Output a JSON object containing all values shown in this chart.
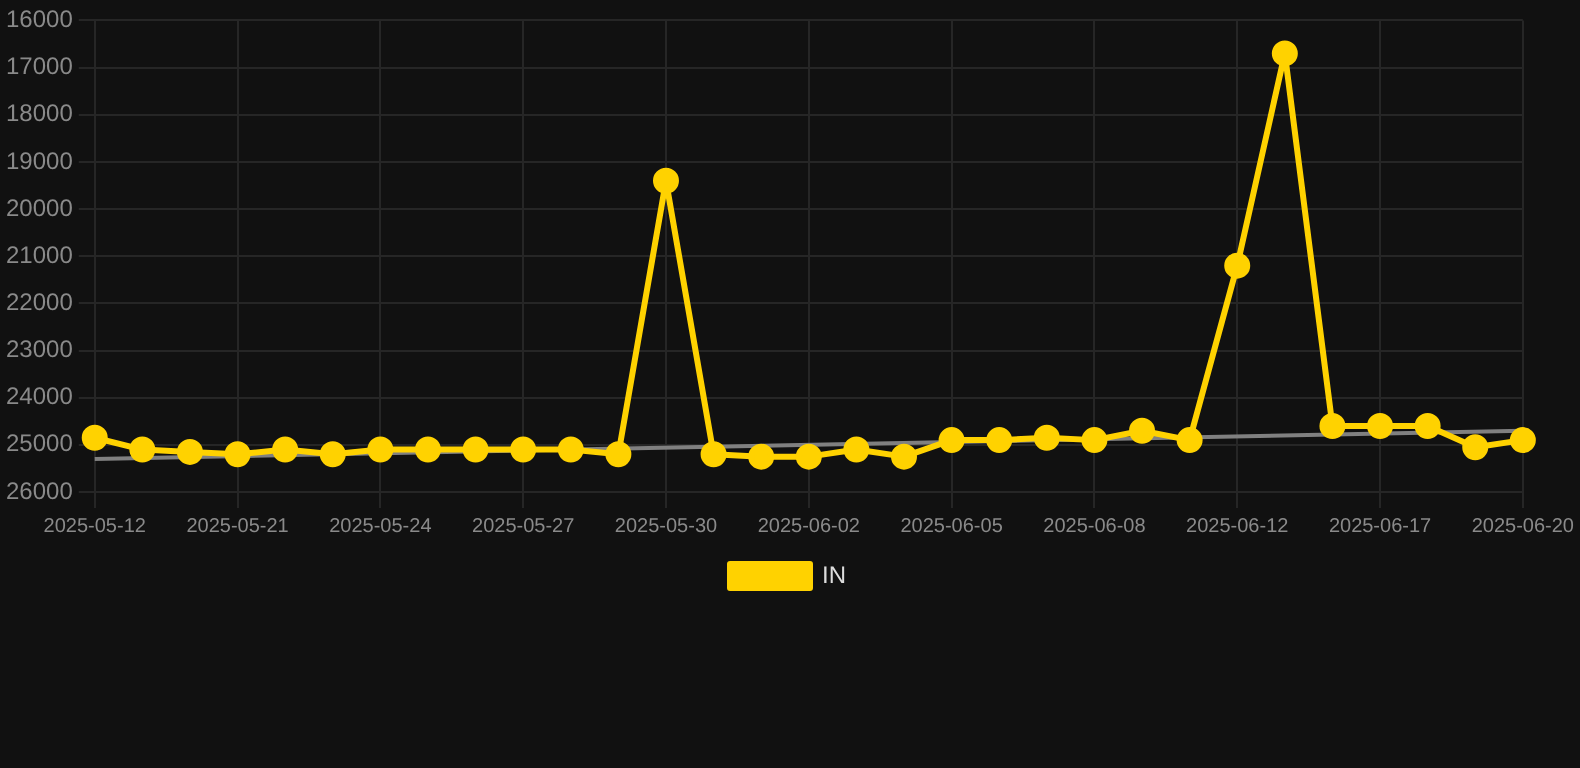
{
  "chart_data": {
    "type": "line",
    "categories": [
      "2025-05-12",
      null,
      null,
      "2025-05-21",
      null,
      null,
      "2025-05-24",
      null,
      null,
      "2025-05-27",
      null,
      null,
      "2025-05-30",
      null,
      null,
      "2025-06-02",
      null,
      null,
      "2025-06-05",
      null,
      null,
      "2025-06-08",
      null,
      null,
      "2025-06-12",
      null,
      null,
      "2025-06-17",
      null,
      null,
      "2025-06-20"
    ],
    "series": [
      {
        "name": "IN",
        "color": "#ffd200",
        "marker": "circle",
        "values": [
          24850,
          25100,
          25150,
          25200,
          25100,
          25200,
          25100,
          25100,
          25100,
          25100,
          25100,
          25200,
          19400,
          25200,
          25250,
          25250,
          25100,
          25250,
          24900,
          24900,
          24850,
          24900,
          24700,
          24900,
          21200,
          16700,
          24600,
          24600,
          24600,
          25050,
          24900
        ]
      },
      {
        "type": "line",
        "color": "#808080",
        "marker": "none",
        "values": [
          25300,
          null,
          null,
          null,
          null,
          null,
          null,
          null,
          null,
          null,
          null,
          null,
          null,
          null,
          null,
          null,
          null,
          null,
          null,
          null,
          null,
          null,
          null,
          null,
          null,
          null,
          null,
          null,
          null,
          null,
          24700
        ]
      }
    ],
    "ylim": [
      26000,
      16000
    ],
    "yticks": [
      16000,
      17000,
      18000,
      19000,
      20000,
      21000,
      22000,
      23000,
      24000,
      25000,
      26000
    ],
    "grid": true,
    "legend": "bottom"
  }
}
